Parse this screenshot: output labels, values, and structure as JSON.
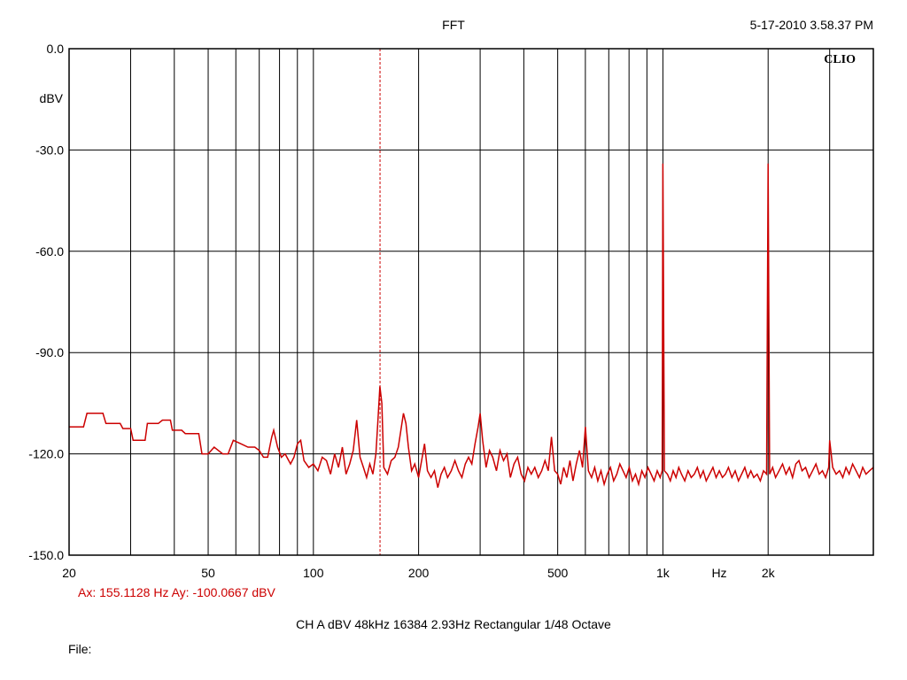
{
  "header": {
    "title": "FFT",
    "timestamp": "5-17-2010 3.58.37 PM",
    "brand": "CLIO"
  },
  "cursor_readout": "Ax: 155.1128 Hz   Ay: -100.0667 dBV",
  "settings_line": "CH A   dBV   48kHz   16384   2.93Hz   Rectangular   1/48 Octave",
  "file_label": "File:",
  "colors": {
    "trace": "#cc0000",
    "grid": "#000000",
    "background": "#ffffff"
  },
  "chart_data": {
    "type": "line",
    "title": "FFT",
    "xscale": "log",
    "xlim": [
      20,
      4000
    ],
    "ylim": [
      -150,
      0
    ],
    "xlabel": "Hz",
    "ylabel": "dBV",
    "grid": true,
    "x_ticks": [
      {
        "value": 20,
        "label": "20"
      },
      {
        "value": 50,
        "label": "50"
      },
      {
        "value": 100,
        "label": "100"
      },
      {
        "value": 200,
        "label": "200"
      },
      {
        "value": 500,
        "label": "500"
      },
      {
        "value": 1000,
        "label": "1k"
      },
      {
        "value": 2000,
        "label": "2k"
      }
    ],
    "x_grid": [
      20,
      30,
      40,
      50,
      60,
      70,
      80,
      90,
      100,
      200,
      300,
      400,
      500,
      600,
      700,
      800,
      900,
      1000,
      2000,
      3000
    ],
    "y_ticks": [
      {
        "value": 0,
        "label": "0.0"
      },
      {
        "value": -30,
        "label": "-30.0"
      },
      {
        "value": -60,
        "label": "-60.0"
      },
      {
        "value": -90,
        "label": "-90.0"
      },
      {
        "value": -120,
        "label": "-120.0"
      },
      {
        "value": -150,
        "label": "-150.0"
      }
    ],
    "cursor": {
      "x": 155.1128,
      "y": -100.0667
    },
    "series": [
      {
        "color": "#cc0000",
        "points": [
          [
            20,
            -112
          ],
          [
            22,
            -112
          ],
          [
            22.5,
            -108
          ],
          [
            25,
            -108
          ],
          [
            25.5,
            -111
          ],
          [
            28,
            -111
          ],
          [
            28.5,
            -112.5
          ],
          [
            30,
            -112.5
          ],
          [
            30.5,
            -116
          ],
          [
            33,
            -116
          ],
          [
            33.5,
            -111
          ],
          [
            36,
            -111
          ],
          [
            37,
            -110
          ],
          [
            39,
            -110
          ],
          [
            39.5,
            -113
          ],
          [
            42,
            -113
          ],
          [
            43,
            -114
          ],
          [
            47,
            -114
          ],
          [
            48,
            -120
          ],
          [
            50,
            -120
          ],
          [
            52,
            -118
          ],
          [
            55,
            -120
          ],
          [
            57,
            -120
          ],
          [
            59,
            -116
          ],
          [
            62,
            -117
          ],
          [
            65,
            -118
          ],
          [
            68,
            -118
          ],
          [
            70,
            -119
          ],
          [
            72,
            -121
          ],
          [
            74,
            -121
          ],
          [
            76,
            -115
          ],
          [
            77,
            -113
          ],
          [
            79,
            -118
          ],
          [
            81,
            -121
          ],
          [
            83,
            -120
          ],
          [
            86,
            -123
          ],
          [
            88,
            -121
          ],
          [
            90,
            -117
          ],
          [
            92,
            -116
          ],
          [
            94,
            -122
          ],
          [
            97,
            -124
          ],
          [
            100,
            -123
          ],
          [
            103,
            -125
          ],
          [
            106,
            -121
          ],
          [
            109,
            -122
          ],
          [
            112,
            -126
          ],
          [
            115,
            -120
          ],
          [
            118,
            -124
          ],
          [
            121,
            -118
          ],
          [
            124,
            -126
          ],
          [
            127,
            -123
          ],
          [
            130,
            -119
          ],
          [
            133,
            -110
          ],
          [
            136,
            -121
          ],
          [
            139,
            -124
          ],
          [
            142,
            -127
          ],
          [
            145,
            -123
          ],
          [
            148,
            -126
          ],
          [
            151,
            -120
          ],
          [
            153,
            -110
          ],
          [
            155,
            -100
          ],
          [
            157,
            -105
          ],
          [
            159,
            -124
          ],
          [
            163,
            -126
          ],
          [
            167,
            -122
          ],
          [
            171,
            -121
          ],
          [
            175,
            -118
          ],
          [
            178,
            -113
          ],
          [
            181,
            -108
          ],
          [
            184,
            -111
          ],
          [
            187,
            -118
          ],
          [
            191,
            -125
          ],
          [
            195,
            -123
          ],
          [
            200,
            -127
          ],
          [
            204,
            -122
          ],
          [
            208,
            -117
          ],
          [
            212,
            -125
          ],
          [
            217,
            -127
          ],
          [
            222,
            -125
          ],
          [
            227,
            -130
          ],
          [
            232,
            -126
          ],
          [
            237,
            -124
          ],
          [
            242,
            -127
          ],
          [
            248,
            -125
          ],
          [
            254,
            -122
          ],
          [
            260,
            -125
          ],
          [
            266,
            -127
          ],
          [
            272,
            -123
          ],
          [
            278,
            -121
          ],
          [
            284,
            -123
          ],
          [
            290,
            -117
          ],
          [
            296,
            -112
          ],
          [
            300,
            -108
          ],
          [
            305,
            -116
          ],
          [
            312,
            -124
          ],
          [
            319,
            -119
          ],
          [
            326,
            -121
          ],
          [
            334,
            -125
          ],
          [
            342,
            -119
          ],
          [
            350,
            -122
          ],
          [
            358,
            -120
          ],
          [
            366,
            -127
          ],
          [
            375,
            -123
          ],
          [
            384,
            -121
          ],
          [
            393,
            -126
          ],
          [
            402,
            -128
          ],
          [
            411,
            -124
          ],
          [
            420,
            -126
          ],
          [
            430,
            -124
          ],
          [
            440,
            -127
          ],
          [
            450,
            -125
          ],
          [
            460,
            -122
          ],
          [
            470,
            -125
          ],
          [
            480,
            -115
          ],
          [
            490,
            -125
          ],
          [
            500,
            -126
          ],
          [
            510,
            -129
          ],
          [
            520,
            -124
          ],
          [
            531,
            -127
          ],
          [
            542,
            -122
          ],
          [
            553,
            -128
          ],
          [
            565,
            -123
          ],
          [
            577,
            -119
          ],
          [
            589,
            -124
          ],
          [
            600,
            -112
          ],
          [
            612,
            -125
          ],
          [
            625,
            -127
          ],
          [
            638,
            -124
          ],
          [
            651,
            -128
          ],
          [
            665,
            -125
          ],
          [
            679,
            -129
          ],
          [
            693,
            -126
          ],
          [
            708,
            -124
          ],
          [
            723,
            -128
          ],
          [
            738,
            -126
          ],
          [
            753,
            -123
          ],
          [
            769,
            -125
          ],
          [
            785,
            -127
          ],
          [
            801,
            -124
          ],
          [
            818,
            -128
          ],
          [
            835,
            -126
          ],
          [
            852,
            -129
          ],
          [
            870,
            -125
          ],
          [
            888,
            -127
          ],
          [
            906,
            -124
          ],
          [
            925,
            -126
          ],
          [
            944,
            -128
          ],
          [
            963,
            -125
          ],
          [
            982,
            -127
          ],
          [
            995,
            -125
          ],
          [
            1000,
            -34
          ],
          [
            1010,
            -125
          ],
          [
            1030,
            -126
          ],
          [
            1050,
            -128
          ],
          [
            1070,
            -125
          ],
          [
            1090,
            -127
          ],
          [
            1110,
            -124
          ],
          [
            1130,
            -126
          ],
          [
            1155,
            -128
          ],
          [
            1180,
            -125
          ],
          [
            1205,
            -127
          ],
          [
            1230,
            -126
          ],
          [
            1255,
            -124
          ],
          [
            1280,
            -127
          ],
          [
            1305,
            -125
          ],
          [
            1330,
            -128
          ],
          [
            1360,
            -126
          ],
          [
            1390,
            -124
          ],
          [
            1420,
            -127
          ],
          [
            1450,
            -125
          ],
          [
            1480,
            -127
          ],
          [
            1510,
            -126
          ],
          [
            1540,
            -124
          ],
          [
            1575,
            -127
          ],
          [
            1610,
            -125
          ],
          [
            1645,
            -128
          ],
          [
            1680,
            -126
          ],
          [
            1715,
            -124
          ],
          [
            1750,
            -127
          ],
          [
            1785,
            -125
          ],
          [
            1820,
            -127
          ],
          [
            1860,
            -126
          ],
          [
            1900,
            -128
          ],
          [
            1940,
            -125
          ],
          [
            1980,
            -126
          ],
          [
            2000,
            -34
          ],
          [
            2020,
            -126
          ],
          [
            2060,
            -124
          ],
          [
            2100,
            -127
          ],
          [
            2150,
            -125
          ],
          [
            2200,
            -123
          ],
          [
            2250,
            -126
          ],
          [
            2300,
            -124
          ],
          [
            2350,
            -127
          ],
          [
            2400,
            -123
          ],
          [
            2450,
            -122
          ],
          [
            2500,
            -125
          ],
          [
            2560,
            -124
          ],
          [
            2620,
            -127
          ],
          [
            2680,
            -125
          ],
          [
            2740,
            -123
          ],
          [
            2800,
            -126
          ],
          [
            2860,
            -125
          ],
          [
            2920,
            -127
          ],
          [
            2980,
            -124
          ],
          [
            3000,
            -116
          ],
          [
            3060,
            -124
          ],
          [
            3130,
            -126
          ],
          [
            3200,
            -125
          ],
          [
            3270,
            -127
          ],
          [
            3340,
            -124
          ],
          [
            3410,
            -126
          ],
          [
            3490,
            -123
          ],
          [
            3570,
            -125
          ],
          [
            3650,
            -127
          ],
          [
            3730,
            -124
          ],
          [
            3810,
            -126
          ],
          [
            3900,
            -125
          ],
          [
            4000,
            -124
          ]
        ]
      }
    ]
  }
}
